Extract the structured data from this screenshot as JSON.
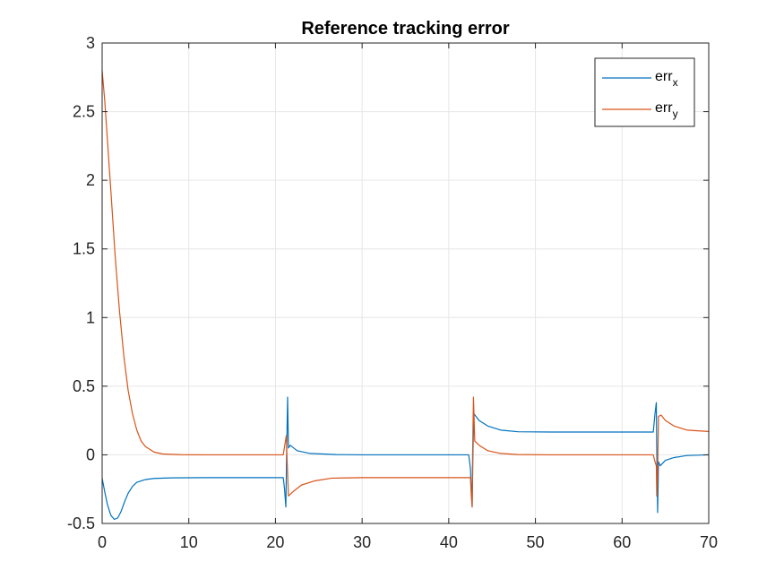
{
  "chart_data": {
    "type": "line",
    "title": "Reference tracking error",
    "xlabel": "",
    "ylabel": "",
    "xlim": [
      0,
      70
    ],
    "ylim": [
      -0.5,
      3
    ],
    "xticks": [
      0,
      10,
      20,
      30,
      40,
      50,
      60,
      70
    ],
    "yticks": [
      -0.5,
      0,
      0.5,
      1,
      1.5,
      2,
      2.5,
      3
    ],
    "xtick_labels": [
      "0",
      "10",
      "20",
      "30",
      "40",
      "50",
      "60",
      "70"
    ],
    "ytick_labels": [
      "-0.5",
      "0",
      "0.5",
      "1",
      "1.5",
      "2",
      "2.5",
      "3"
    ],
    "grid": true,
    "legend_position": "top-right",
    "colors": {
      "err_x": "#0072BD",
      "err_y": "#D95319",
      "grid": "#e6e6e6",
      "axis": "#262626"
    },
    "series": [
      {
        "name": "err",
        "subscript": "x",
        "color": "#0072BD",
        "points": [
          [
            0,
            -0.17
          ],
          [
            0.3,
            -0.27
          ],
          [
            0.6,
            -0.36
          ],
          [
            1.0,
            -0.44
          ],
          [
            1.4,
            -0.47
          ],
          [
            1.8,
            -0.46
          ],
          [
            2.2,
            -0.41
          ],
          [
            2.6,
            -0.34
          ],
          [
            3.0,
            -0.28
          ],
          [
            3.5,
            -0.23
          ],
          [
            4.0,
            -0.2
          ],
          [
            5.0,
            -0.18
          ],
          [
            6.0,
            -0.172
          ],
          [
            8.0,
            -0.168
          ],
          [
            12.0,
            -0.166
          ],
          [
            20.9,
            -0.166
          ],
          [
            21.05,
            -0.25
          ],
          [
            21.2,
            -0.38
          ],
          [
            21.3,
            0.05
          ],
          [
            21.4,
            0.42
          ],
          [
            21.5,
            0.05
          ],
          [
            21.7,
            0.07
          ],
          [
            22.5,
            0.03
          ],
          [
            24.0,
            0.01
          ],
          [
            27.0,
            0.002
          ],
          [
            30.0,
            0
          ],
          [
            42.3,
            0
          ],
          [
            42.5,
            -0.1
          ],
          [
            42.7,
            -0.38
          ],
          [
            42.8,
            0.05
          ],
          [
            42.9,
            0.3
          ],
          [
            43.5,
            0.25
          ],
          [
            44.5,
            0.21
          ],
          [
            46.0,
            0.18
          ],
          [
            48.0,
            0.168
          ],
          [
            52.0,
            0.166
          ],
          [
            63.6,
            0.166
          ],
          [
            63.8,
            0.3
          ],
          [
            63.95,
            0.38
          ],
          [
            64.0,
            0.05
          ],
          [
            64.1,
            -0.42
          ],
          [
            64.2,
            -0.05
          ],
          [
            64.4,
            -0.08
          ],
          [
            65.0,
            -0.04
          ],
          [
            66.0,
            -0.02
          ],
          [
            67.5,
            -0.005
          ],
          [
            70,
            0
          ]
        ]
      },
      {
        "name": "err",
        "subscript": "y",
        "color": "#D95319",
        "points": [
          [
            0,
            2.8
          ],
          [
            0.3,
            2.58
          ],
          [
            0.6,
            2.3
          ],
          [
            1.0,
            1.93
          ],
          [
            1.5,
            1.45
          ],
          [
            2.0,
            1.05
          ],
          [
            2.5,
            0.72
          ],
          [
            3.0,
            0.47
          ],
          [
            3.5,
            0.3
          ],
          [
            4.0,
            0.18
          ],
          [
            4.5,
            0.1
          ],
          [
            5.0,
            0.06
          ],
          [
            6.0,
            0.02
          ],
          [
            7.0,
            0.006
          ],
          [
            9.0,
            0.001
          ],
          [
            12.0,
            0
          ],
          [
            20.9,
            0
          ],
          [
            21.1,
            0.08
          ],
          [
            21.25,
            0.14
          ],
          [
            21.35,
            -0.05
          ],
          [
            21.5,
            -0.3
          ],
          [
            22.0,
            -0.27
          ],
          [
            23.0,
            -0.22
          ],
          [
            24.5,
            -0.19
          ],
          [
            26.5,
            -0.17
          ],
          [
            30.0,
            -0.166
          ],
          [
            42.5,
            -0.166
          ],
          [
            42.6,
            -0.3
          ],
          [
            42.7,
            -0.38
          ],
          [
            42.75,
            0.0
          ],
          [
            42.85,
            0.42
          ],
          [
            43.0,
            0.1
          ],
          [
            43.5,
            0.07
          ],
          [
            44.5,
            0.03
          ],
          [
            46.0,
            0.01
          ],
          [
            48.0,
            0.002
          ],
          [
            52.0,
            0
          ],
          [
            63.6,
            0
          ],
          [
            63.8,
            -0.05
          ],
          [
            63.95,
            -0.08
          ],
          [
            64.0,
            -0.3
          ],
          [
            64.1,
            -0.12
          ],
          [
            64.2,
            0.28
          ],
          [
            64.5,
            0.29
          ],
          [
            65.0,
            0.25
          ],
          [
            66.0,
            0.21
          ],
          [
            67.5,
            0.18
          ],
          [
            70,
            0.17
          ]
        ]
      }
    ]
  }
}
